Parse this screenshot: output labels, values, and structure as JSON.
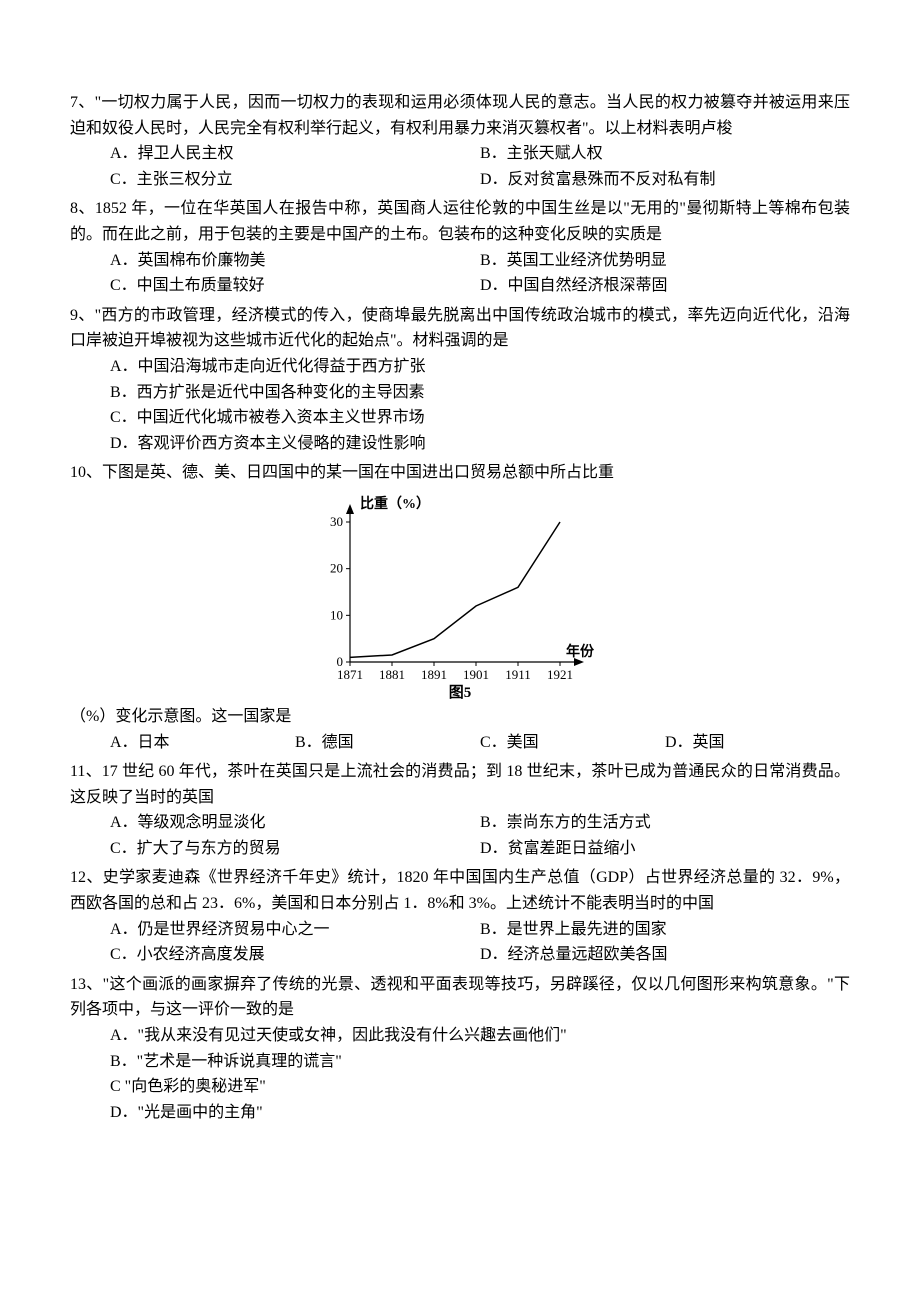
{
  "q7": {
    "num": "7、",
    "text": "\"一切权力属于人民，因而一切权力的表现和运用必须体现人民的意志。当人民的权力被篡夺并被运用来压迫和奴役人民时，人民完全有权利举行起义，有权利用暴力来消灭篡权者\"。以上材料表明卢梭",
    "a": "A．捍卫人民主权",
    "b": "B．主张天赋人权",
    "c": "C．主张三权分立",
    "d": "D．反对贫富悬殊而不反对私有制"
  },
  "q8": {
    "num": "8、",
    "text": "1852 年，一位在华英国人在报告中称，英国商人运往伦敦的中国生丝是以\"无用的\"曼彻斯特上等棉布包装的。而在此之前，用于包装的主要是中国产的土布。包装布的这种变化反映的实质是",
    "a": "A．英国棉布价廉物美",
    "b": "B．英国工业经济优势明显",
    "c": "C．中国土布质量较好",
    "d": "D．中国自然经济根深蒂固"
  },
  "q9": {
    "num": "9、",
    "text": "\"西方的市政管理，经济模式的传入，使商埠最先脱离出中国传统政治城市的模式，率先迈向近代化，沿海口岸被迫开埠被视为这些城市近代化的起始点\"。材料强调的是",
    "a": "A．中国沿海城市走向近代化得益于西方扩张",
    "b": "B．西方扩张是近代中国各种变化的主导因素",
    "c": "C．中国近代化城市被卷入资本主义世界市场",
    "d": "D．客观评价西方资本主义侵略的建设性影响"
  },
  "q10": {
    "num": "10、",
    "text_before": "下图是英、德、美、日四国中的某一国在中国进出口贸易总额中所占比重",
    "text_after": "（%）变化示意图。这一国家是",
    "a": "A．日本",
    "b": "B．德国",
    "c": "C．美国",
    "d": "D．英国",
    "chart": {
      "type": "line",
      "ylabel": "比重（%）",
      "xlabel": "年份",
      "caption": "图5",
      "ylim": [
        0,
        30
      ],
      "yticks": [
        0,
        10,
        20,
        30
      ],
      "xticks": [
        "1871",
        "1881",
        "1891",
        "1901",
        "1911",
        "1921"
      ],
      "points": [
        {
          "x": 0,
          "y": 1
        },
        {
          "x": 1,
          "y": 1.5
        },
        {
          "x": 2,
          "y": 5
        },
        {
          "x": 3,
          "y": 12
        },
        {
          "x": 4,
          "y": 16
        },
        {
          "x": 5,
          "y": 30
        }
      ],
      "axis_color": "#000000",
      "line_color": "#000000",
      "background_color": "#ffffff",
      "font_size": 13,
      "line_width": 1.5
    }
  },
  "q11": {
    "num": "11、",
    "text": "17 世纪 60 年代，茶叶在英国只是上流社会的消费品；到 18 世纪末，茶叶已成为普通民众的日常消费品。这反映了当时的英国",
    "a": "A．等级观念明显淡化",
    "b": "B．崇尚东方的生活方式",
    "c": "C．扩大了与东方的贸易",
    "d": "D．贫富差距日益缩小"
  },
  "q12": {
    "num": "12、",
    "text": "史学家麦迪森《世界经济千年史》统计，1820 年中国国内生产总值（GDP）占世界经济总量的 32．9%，西欧各国的总和占 23．6%，美国和日本分别占 1．8%和 3%。上述统计不能表明当时的中国",
    "a": "A．仍是世界经济贸易中心之一",
    "b": "B．是世界上最先进的国家",
    "c": "C．小农经济高度发展",
    "d": "D．经济总量远超欧美各国"
  },
  "q13": {
    "num": "13、",
    "text": "\"这个画派的画家摒弃了传统的光景、透视和平面表现等技巧，另辟蹊径，仅以几何图形来构筑意象。\"下列各项中，与这一评价一致的是",
    "a": "A．\"我从来没有见过天使或女神，因此我没有什么兴趣去画他们\"",
    "b": "B．\"艺术是一种诉说真理的谎言\"",
    "c": "C \"向色彩的奥秘进军\"",
    "d": "D．\"光是画中的主角\""
  }
}
